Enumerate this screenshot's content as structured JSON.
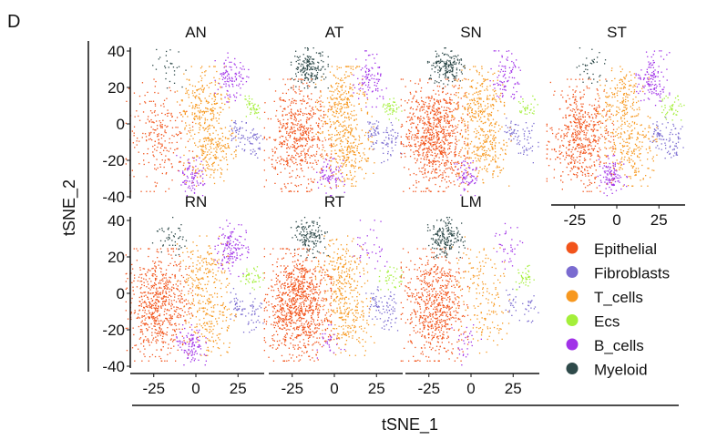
{
  "panel_label": "D",
  "chart_data": {
    "type": "scatter",
    "xlabel": "tSNE_1",
    "ylabel": "tSNE_2",
    "xlim": [
      -40,
      40
    ],
    "ylim": [
      -42,
      42
    ],
    "xticks": [
      -25,
      0,
      25
    ],
    "yticks": [
      40,
      20,
      0,
      -20,
      -40
    ],
    "grid": false,
    "legend_placement": "bottom-right",
    "legend": [
      {
        "name": "Epithelial",
        "color": "#f2541b"
      },
      {
        "name": "Fibroblasts",
        "color": "#7a6bd0"
      },
      {
        "name": "T_cells",
        "color": "#f7981f"
      },
      {
        "name": "Ecs",
        "color": "#a4ef3a"
      },
      {
        "name": "B_cells",
        "color": "#a132e8"
      },
      {
        "name": "Myeloid",
        "color": "#2e4a4a"
      }
    ],
    "clusters": {
      "Epithelial": [
        {
          "x": -22,
          "y": -6,
          "sx": 9,
          "sy": 14
        }
      ],
      "Fibroblasts": [
        {
          "x": 24,
          "y": -5,
          "sx": 2.5,
          "sy": 4
        },
        {
          "x": 33,
          "y": -10,
          "sx": 3,
          "sy": 5
        }
      ],
      "T_cells": [
        {
          "x": 4,
          "y": 12,
          "sx": 7,
          "sy": 9
        },
        {
          "x": 8,
          "y": -14,
          "sx": 7,
          "sy": 9
        }
      ],
      "Ecs": [
        {
          "x": 33,
          "y": 9,
          "sx": 3,
          "sy": 3
        }
      ],
      "B_cells": [
        {
          "x": 21,
          "y": 25,
          "sx": 4.5,
          "sy": 7
        },
        {
          "x": -3,
          "y": -28,
          "sx": 4,
          "sy": 5
        }
      ],
      "Myeloid": [
        {
          "x": -15,
          "y": 31,
          "sx": 5,
          "sy": 5
        }
      ]
    },
    "panels": [
      {
        "title": "AN",
        "density": {
          "Epithelial": 0.25,
          "Fibroblasts": 0.4,
          "T_cells": 0.8,
          "Ecs": 0.35,
          "B_cells": 0.6,
          "Myeloid": 0.12
        }
      },
      {
        "title": "AT",
        "density": {
          "Epithelial": 0.6,
          "Fibroblasts": 0.45,
          "T_cells": 0.9,
          "Ecs": 0.35,
          "B_cells": 0.55,
          "Myeloid": 0.75
        }
      },
      {
        "title": "SN",
        "density": {
          "Epithelial": 0.9,
          "Fibroblasts": 0.35,
          "T_cells": 0.8,
          "Ecs": 0.25,
          "B_cells": 0.5,
          "Myeloid": 0.75
        }
      },
      {
        "title": "ST",
        "density": {
          "Epithelial": 0.6,
          "Fibroblasts": 0.45,
          "T_cells": 0.7,
          "Ecs": 0.35,
          "B_cells": 0.8,
          "Myeloid": 0.15
        }
      },
      {
        "title": "RN",
        "density": {
          "Epithelial": 0.7,
          "Fibroblasts": 0.35,
          "T_cells": 0.6,
          "Ecs": 0.35,
          "B_cells": 0.8,
          "Myeloid": 0.2
        }
      },
      {
        "title": "RT",
        "density": {
          "Epithelial": 1.0,
          "Fibroblasts": 0.4,
          "T_cells": 0.7,
          "Ecs": 0.3,
          "B_cells": 0.2,
          "Myeloid": 0.6
        }
      },
      {
        "title": "LM",
        "density": {
          "Epithelial": 0.7,
          "Fibroblasts": 0.2,
          "T_cells": 0.3,
          "Ecs": 0.3,
          "B_cells": 0.2,
          "Myeloid": 0.8
        }
      }
    ]
  }
}
